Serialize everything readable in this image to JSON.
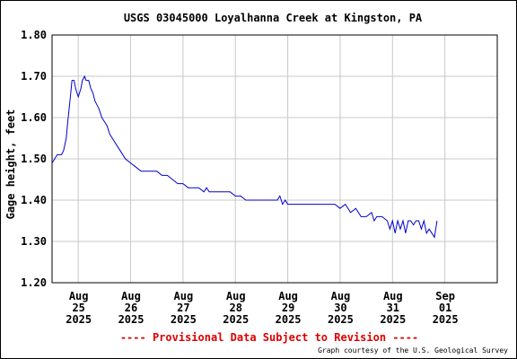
{
  "chart_data": {
    "type": "line",
    "title": "USGS 03045000 Loyalhanna Creek at Kingston, PA",
    "ylabel": "Gage height, feet",
    "ylim": [
      1.2,
      1.8
    ],
    "yticks": [
      "1.20",
      "1.30",
      "1.40",
      "1.50",
      "1.60",
      "1.70",
      "1.80"
    ],
    "xlim_days": [
      0,
      8.5
    ],
    "xticks": [
      {
        "day": 0.5,
        "lines": [
          "Aug",
          "25",
          "2025"
        ]
      },
      {
        "day": 1.5,
        "lines": [
          "Aug",
          "26",
          "2025"
        ]
      },
      {
        "day": 2.5,
        "lines": [
          "Aug",
          "27",
          "2025"
        ]
      },
      {
        "day": 3.5,
        "lines": [
          "Aug",
          "28",
          "2025"
        ]
      },
      {
        "day": 4.5,
        "lines": [
          "Aug",
          "29",
          "2025"
        ]
      },
      {
        "day": 5.5,
        "lines": [
          "Aug",
          "30",
          "2025"
        ]
      },
      {
        "day": 6.5,
        "lines": [
          "Aug",
          "31",
          "2025"
        ]
      },
      {
        "day": 7.5,
        "lines": [
          "Sep",
          "01",
          "2025"
        ]
      }
    ],
    "grid": true,
    "line_color": "#0000cc",
    "series": [
      {
        "x": [
          0.0,
          0.05,
          0.1,
          0.18,
          0.22,
          0.27,
          0.3,
          0.35,
          0.38,
          0.42,
          0.45,
          0.5,
          0.55,
          0.58,
          0.62,
          0.65,
          0.7,
          0.74,
          0.78,
          0.82,
          0.86,
          0.9,
          0.95,
          1.0,
          1.05,
          1.1,
          1.15,
          1.2,
          1.25,
          1.3,
          1.4,
          1.5,
          1.6,
          1.7,
          1.8,
          1.9,
          2.0,
          2.1,
          2.2,
          2.3,
          2.4,
          2.5,
          2.6,
          2.7,
          2.8,
          2.9,
          2.95,
          3.0,
          3.1,
          3.2,
          3.3,
          3.4,
          3.5,
          3.6,
          3.7,
          3.8,
          3.9,
          4.0,
          4.1,
          4.2,
          4.3,
          4.35,
          4.4,
          4.45,
          4.5,
          4.55,
          4.6,
          4.65,
          4.7,
          4.8,
          4.9,
          5.0,
          5.1,
          5.2,
          5.3,
          5.4,
          5.5,
          5.6,
          5.7,
          5.8,
          5.9,
          6.0,
          6.1,
          6.15,
          6.2,
          6.3,
          6.4,
          6.45,
          6.5,
          6.55,
          6.6,
          6.65,
          6.7,
          6.75,
          6.8,
          6.85,
          6.9,
          6.95,
          7.0,
          7.05,
          7.1,
          7.15,
          7.2,
          7.25,
          7.3,
          7.35
        ],
        "y": [
          1.49,
          1.5,
          1.51,
          1.51,
          1.52,
          1.55,
          1.59,
          1.65,
          1.69,
          1.69,
          1.67,
          1.65,
          1.67,
          1.69,
          1.7,
          1.69,
          1.69,
          1.67,
          1.66,
          1.64,
          1.63,
          1.62,
          1.6,
          1.59,
          1.58,
          1.56,
          1.55,
          1.54,
          1.53,
          1.52,
          1.5,
          1.49,
          1.48,
          1.47,
          1.47,
          1.47,
          1.47,
          1.46,
          1.46,
          1.45,
          1.44,
          1.44,
          1.43,
          1.43,
          1.43,
          1.42,
          1.43,
          1.42,
          1.42,
          1.42,
          1.42,
          1.42,
          1.41,
          1.41,
          1.4,
          1.4,
          1.4,
          1.4,
          1.4,
          1.4,
          1.4,
          1.41,
          1.39,
          1.4,
          1.39,
          1.39,
          1.39,
          1.39,
          1.39,
          1.39,
          1.39,
          1.39,
          1.39,
          1.39,
          1.39,
          1.39,
          1.38,
          1.39,
          1.37,
          1.38,
          1.36,
          1.36,
          1.37,
          1.35,
          1.36,
          1.36,
          1.35,
          1.33,
          1.35,
          1.32,
          1.35,
          1.33,
          1.35,
          1.32,
          1.35,
          1.35,
          1.34,
          1.35,
          1.35,
          1.33,
          1.35,
          1.32,
          1.33,
          1.32,
          1.31,
          1.35
        ]
      }
    ],
    "footer_provisional": "---- Provisional Data Subject to Revision ----",
    "footer_credit": "Graph courtesy of the U.S. Geological Survey",
    "colors": {
      "grid": "#c8c8c8",
      "axis": "#000000",
      "provisional": "#dd0000"
    }
  }
}
